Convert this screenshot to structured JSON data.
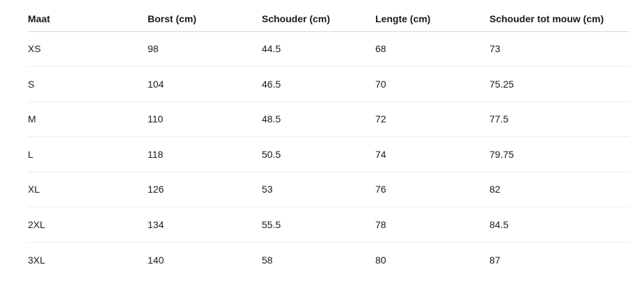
{
  "table": {
    "headers": [
      "Maat",
      "Borst (cm)",
      "Schouder (cm)",
      "Lengte (cm)",
      "Schouder tot mouw (cm)"
    ],
    "rows": [
      [
        "XS",
        "98",
        "44.5",
        "68",
        "73"
      ],
      [
        "S",
        "104",
        "46.5",
        "70",
        "75.25"
      ],
      [
        "M",
        "110",
        "48.5",
        "72",
        "77.5"
      ],
      [
        "L",
        "118",
        "50.5",
        "74",
        "79.75"
      ],
      [
        "XL",
        "126",
        "53",
        "76",
        "82"
      ],
      [
        "2XL",
        "134",
        "55.5",
        "78",
        "84.5"
      ],
      [
        "3XL",
        "140",
        "58",
        "80",
        "87"
      ]
    ]
  }
}
